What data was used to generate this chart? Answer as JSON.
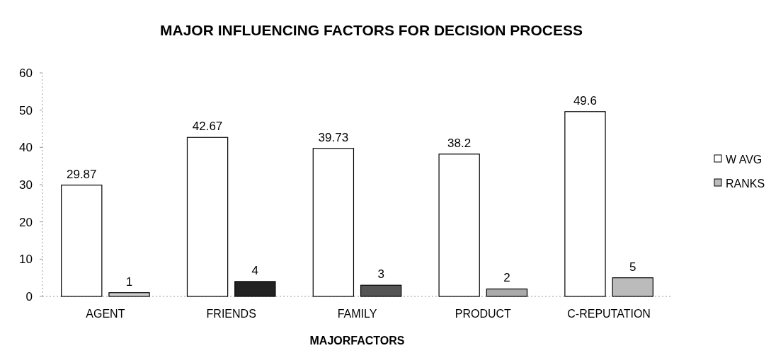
{
  "chart_data": {
    "type": "bar",
    "title": "MAJOR INFLUENCING FACTORS FOR DECISION PROCESS",
    "xlabel": "MAJORFACTORS",
    "categories": [
      "AGENT",
      "FRIENDS",
      "FAMILY",
      "PRODUCT",
      "C-REPUTATION"
    ],
    "series": [
      {
        "name": "W AVG",
        "color": "#ffffff",
        "values": [
          29.87,
          42.67,
          39.73,
          38.2,
          49.6
        ]
      },
      {
        "name": "RANKS",
        "color": "#bbbbbb",
        "colors": [
          "#cccccc",
          "#222222",
          "#555555",
          "#aaaaaa",
          "#bbbbbb"
        ],
        "values": [
          1,
          4,
          3,
          2,
          5
        ]
      }
    ],
    "ylim": [
      0,
      60
    ],
    "yticks": [
      0,
      10,
      20,
      30,
      40,
      50,
      60
    ],
    "data_labels": true,
    "legend": "right",
    "grid": false
  }
}
